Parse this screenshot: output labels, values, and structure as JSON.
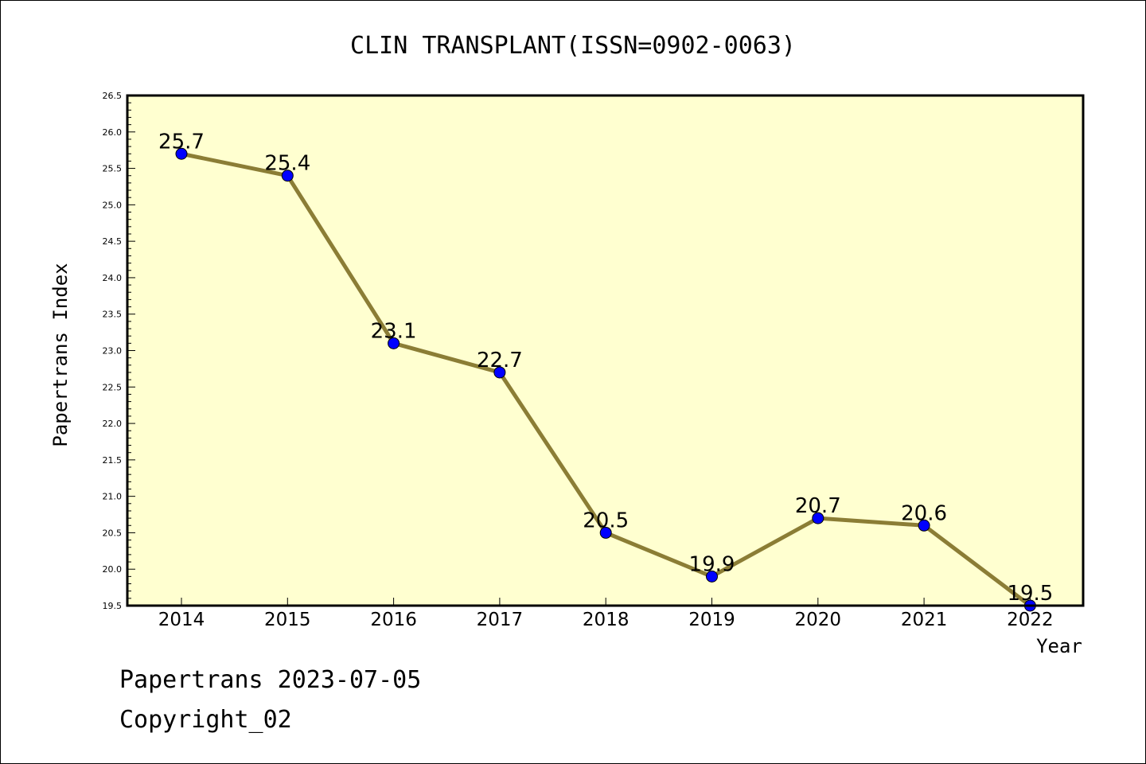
{
  "chart_data": {
    "type": "line",
    "title": "CLIN TRANSPLANT(ISSN=0902-0063)",
    "xlabel": "Year",
    "ylabel": "Papertrans Index",
    "categories": [
      "2014",
      "2015",
      "2016",
      "2017",
      "2018",
      "2019",
      "2020",
      "2021",
      "2022"
    ],
    "values": [
      25.7,
      25.4,
      23.1,
      22.7,
      20.5,
      19.9,
      20.7,
      20.6,
      19.5
    ],
    "data_labels": [
      "25.7",
      "25.4",
      "23.1",
      "22.7",
      "20.5",
      "19.9",
      "20.7",
      "20.6",
      "19.5"
    ],
    "ylim": [
      19.5,
      26.5
    ],
    "yticks": [
      "19.5",
      "20.0",
      "20.5",
      "21.0",
      "21.5",
      "22.0",
      "22.5",
      "23.0",
      "23.5",
      "24.0",
      "24.5",
      "25.0",
      "25.5",
      "26.0",
      "26.5"
    ],
    "grid": false,
    "colors": {
      "plot_background": "#ffffd0",
      "line": "#8b7d35",
      "marker": "#0000ff"
    }
  },
  "footer": {
    "line1": "Papertrans 2023-07-05",
    "line2": "Copyright_02"
  }
}
